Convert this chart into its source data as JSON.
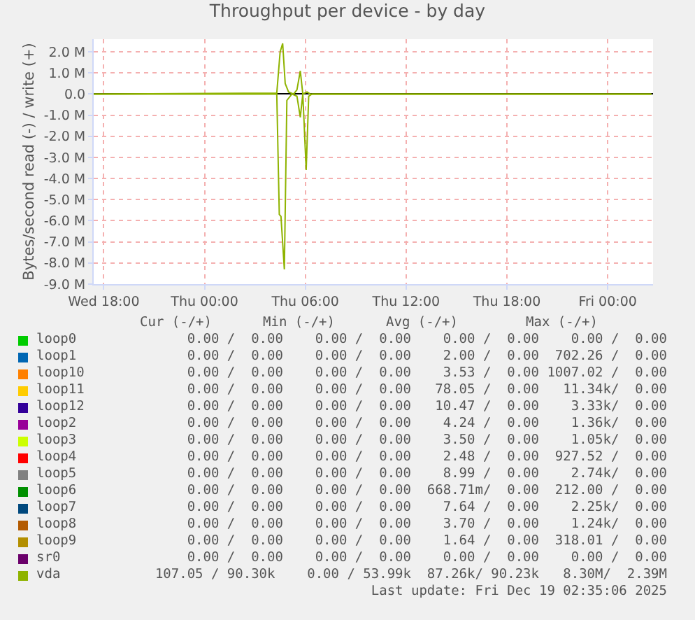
{
  "chart_data": {
    "type": "line",
    "title": "Throughput per device - by day",
    "ylabel": "Bytes/second read (-) / write (+)",
    "xlim": [
      "2025-12-17T17:24",
      "2025-12-19T02:42"
    ],
    "xticks": [
      {
        "value": "2025-12-17T18:00",
        "label": "Wed 18:00"
      },
      {
        "value": "2025-12-18T00:00",
        "label": "Thu 00:00"
      },
      {
        "value": "2025-12-18T06:00",
        "label": "Thu 06:00"
      },
      {
        "value": "2025-12-18T12:00",
        "label": "Thu 12:00"
      },
      {
        "value": "2025-12-18T18:00",
        "label": "Thu 18:00"
      },
      {
        "value": "2025-12-19T00:00",
        "label": "Fri 00:00"
      }
    ],
    "ylim": [
      -9.0,
      2.6
    ],
    "yticks": [
      {
        "value": 2,
        "label": "2.0 M"
      },
      {
        "value": 1,
        "label": "1.0 M"
      },
      {
        "value": 0,
        "label": "0.0"
      },
      {
        "value": -1,
        "label": "-1.0 M"
      },
      {
        "value": -2,
        "label": "-2.0 M"
      },
      {
        "value": -3,
        "label": "-3.0 M"
      },
      {
        "value": -4,
        "label": "-4.0 M"
      },
      {
        "value": -5,
        "label": "-5.0 M"
      },
      {
        "value": -6,
        "label": "-6.0 M"
      },
      {
        "value": -7,
        "label": "-7.0 M"
      },
      {
        "value": -8,
        "label": "-8.0 M"
      },
      {
        "value": -9,
        "label": "-9.0 M"
      }
    ],
    "grid": true,
    "legend": "bottom",
    "marker": "none",
    "line_style": "solid",
    "series": [
      {
        "name": "loop0",
        "color": "#00cc00"
      },
      {
        "name": "loop1",
        "color": "#0066b3"
      },
      {
        "name": "loop10",
        "color": "#ff8000"
      },
      {
        "name": "loop11",
        "color": "#ffcc00"
      },
      {
        "name": "loop12",
        "color": "#330099"
      },
      {
        "name": "loop2",
        "color": "#990099"
      },
      {
        "name": "loop3",
        "color": "#ccff00"
      },
      {
        "name": "loop4",
        "color": "#ff0000"
      },
      {
        "name": "loop5",
        "color": "#808080"
      },
      {
        "name": "loop6",
        "color": "#008f00"
      },
      {
        "name": "loop7",
        "color": "#00487d"
      },
      {
        "name": "loop8",
        "color": "#b35a00"
      },
      {
        "name": "loop9",
        "color": "#b38f00"
      },
      {
        "name": "sr0",
        "color": "#6b006b"
      },
      {
        "name": "vda",
        "color": "#8fb300",
        "x": [
          "2025-12-17T17:24",
          "2025-12-18T04:18",
          "2025-12-18T04:30",
          "2025-12-18T04:39",
          "2025-12-18T04:48",
          "2025-12-18T05:00",
          "2025-12-18T05:18",
          "2025-12-18T05:30",
          "2025-12-18T05:42",
          "2025-12-18T05:51",
          "2025-12-18T06:06",
          "2025-12-18T06:18",
          "2025-12-19T02:36"
        ],
        "values": [
          0,
          0.05,
          2.0,
          2.4,
          0.5,
          0.1,
          0,
          0.2,
          1.1,
          0,
          0.1,
          0,
          0
        ]
      },
      {
        "color": "#8fb300",
        "x": [
          "2025-12-17T17:24",
          "2025-12-18T04:18",
          "2025-12-18T04:27",
          "2025-12-18T04:33",
          "2025-12-18T04:45",
          "2025-12-18T04:54",
          "2025-12-18T05:12",
          "2025-12-18T05:30",
          "2025-12-18T05:42",
          "2025-12-18T05:51",
          "2025-12-18T06:03",
          "2025-12-18T06:12",
          "2025-12-18T06:24",
          "2025-12-19T02:36"
        ],
        "values": [
          0,
          0,
          -5.7,
          -5.8,
          -8.3,
          -0.3,
          0,
          -0.1,
          -1.1,
          0,
          -3.6,
          -0.1,
          0,
          0
        ]
      }
    ],
    "annotations": [
      "Cur (-/+)",
      "Min (-/+)",
      "Avg (-/+)",
      "Max (-/+)",
      "0.00 /  0.00    0.00 /  0.00    0.00 /  0.00    0.00 /  0.00",
      "0.00 /  0.00    0.00 /  0.00    2.00 /  0.00  702.26 /  0.00",
      "0.00 /  0.00    0.00 /  0.00    3.53 /  0.00 1007.02 /  0.00",
      "0.00 /  0.00    0.00 /  0.00   78.05 /  0.00   11.34k/  0.00",
      "0.00 /  0.00    0.00 /  0.00   10.47 /  0.00    3.33k/  0.00",
      "0.00 /  0.00    0.00 /  0.00    4.24 /  0.00    1.36k/  0.00",
      "0.00 /  0.00    0.00 /  0.00    3.50 /  0.00    1.05k/  0.00",
      "0.00 /  0.00    0.00 /  0.00    2.48 /  0.00  927.52 /  0.00",
      "0.00 /  0.00    0.00 /  0.00    8.99 /  0.00    2.74k/  0.00",
      "0.00 /  0.00    0.00 /  0.00  668.71m/  0.00  212.00 /  0.00",
      "0.00 /  0.00    0.00 /  0.00    7.64 /  0.00    2.25k/  0.00",
      "0.00 /  0.00    0.00 /  0.00    3.70 /  0.00    1.24k/  0.00",
      "0.00 /  0.00    0.00 /  0.00    1.64 /  0.00  318.01 /  0.00",
      "0.00 /  0.00    0.00 /  0.00    0.00 /  0.00    0.00 /  0.00",
      "107.05 / 90.30k    0.00 / 53.99k  87.26k/ 90.23k   8.30M/  2.39M",
      "Last update: Fri Dec 19 02:35:06 2025"
    ]
  }
}
